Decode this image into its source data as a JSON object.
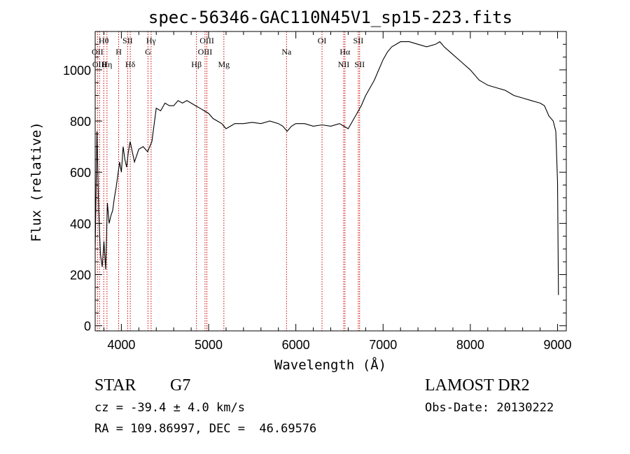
{
  "chart_data": {
    "type": "line",
    "title": "spec-56346-GAC110N45V1_sp15-223.fits",
    "xlabel": "Wavelength (Å)",
    "ylabel": "Flux (relative)",
    "xlim": [
      3700,
      9100
    ],
    "ylim": [
      -20,
      1150
    ],
    "xticks": [
      4000,
      5000,
      6000,
      7000,
      8000,
      9000
    ],
    "yticks": [
      0,
      200,
      400,
      600,
      800,
      1000
    ],
    "grid": false,
    "line_color": "#000000",
    "marker_color": "#cc0000",
    "series": [
      {
        "x": [
          3700,
          3720,
          3740,
          3760,
          3780,
          3800,
          3820,
          3840,
          3860,
          3880,
          3900,
          3920,
          3940,
          3960,
          3980,
          4000,
          4020,
          4040,
          4060,
          4080,
          4100,
          4150,
          4200,
          4250,
          4300,
          4350,
          4400,
          4450,
          4500,
          4550,
          4600,
          4650,
          4700,
          4750,
          4800,
          4850,
          4900,
          4950,
          5000,
          5050,
          5100,
          5150,
          5200,
          5250,
          5300,
          5400,
          5500,
          5600,
          5700,
          5800,
          5850,
          5900,
          5950,
          6000,
          6100,
          6200,
          6300,
          6400,
          6500,
          6550,
          6600,
          6650,
          6700,
          6750,
          6800,
          6850,
          6900,
          6950,
          7000,
          7050,
          7100,
          7200,
          7300,
          7400,
          7500,
          7600,
          7650,
          7700,
          7800,
          7900,
          8000,
          8100,
          8200,
          8300,
          8400,
          8500,
          8600,
          8700,
          8800,
          8850,
          8900,
          8950,
          8980,
          9000,
          9010
        ],
        "y": [
          300,
          760,
          450,
          280,
          230,
          330,
          220,
          480,
          400,
          430,
          450,
          500,
          540,
          590,
          640,
          600,
          700,
          650,
          620,
          680,
          720,
          640,
          690,
          700,
          680,
          720,
          850,
          840,
          870,
          860,
          860,
          880,
          870,
          880,
          870,
          860,
          850,
          840,
          830,
          810,
          800,
          790,
          770,
          780,
          790,
          790,
          795,
          790,
          800,
          790,
          780,
          760,
          780,
          790,
          790,
          780,
          785,
          780,
          790,
          780,
          770,
          800,
          830,
          860,
          900,
          930,
          960,
          1000,
          1040,
          1070,
          1090,
          1110,
          1110,
          1100,
          1090,
          1100,
          1110,
          1090,
          1060,
          1030,
          1000,
          960,
          940,
          930,
          920,
          900,
          890,
          880,
          870,
          860,
          820,
          800,
          760,
          560,
          120
        ]
      }
    ],
    "emission_lines": [
      {
        "label": "Hθ",
        "x": 3798,
        "row": 1
      },
      {
        "label": "OII",
        "x": 3727,
        "row": 2
      },
      {
        "label": "OIII",
        "x": 3750,
        "row": 3
      },
      {
        "label": "Hη",
        "x": 3835,
        "row": 3
      },
      {
        "label": "SII",
        "x": 4072,
        "row": 1
      },
      {
        "label": "H",
        "x": 3969,
        "row": 2
      },
      {
        "label": "Hδ",
        "x": 4102,
        "row": 3
      },
      {
        "label": "Hγ",
        "x": 4341,
        "row": 1
      },
      {
        "label": "G",
        "x": 4305,
        "row": 2
      },
      {
        "label": "OIII",
        "x": 4980,
        "row": 1
      },
      {
        "label": "OIII",
        "x": 4959,
        "row": 2
      },
      {
        "label": "Hβ",
        "x": 4861,
        "row": 3
      },
      {
        "label": "Mg",
        "x": 5175,
        "row": 3
      },
      {
        "label": "Na",
        "x": 5893,
        "row": 2
      },
      {
        "label": "OI",
        "x": 6300,
        "row": 1
      },
      {
        "label": "Hα",
        "x": 6563,
        "row": 2
      },
      {
        "label": "NII",
        "x": 6548,
        "row": 3
      },
      {
        "label": "SII",
        "x": 6716,
        "row": 1
      },
      {
        "label": "SII",
        "x": 6731,
        "row": 3
      }
    ]
  },
  "info": {
    "class_label": "STAR",
    "subclass": "G7",
    "cz": "cz = -39.4 ± 4.0 km/s",
    "coords": "RA = 109.86997, DEC =  46.69576",
    "survey": "LAMOST DR2",
    "obs_date": "Obs-Date: 20130222"
  }
}
